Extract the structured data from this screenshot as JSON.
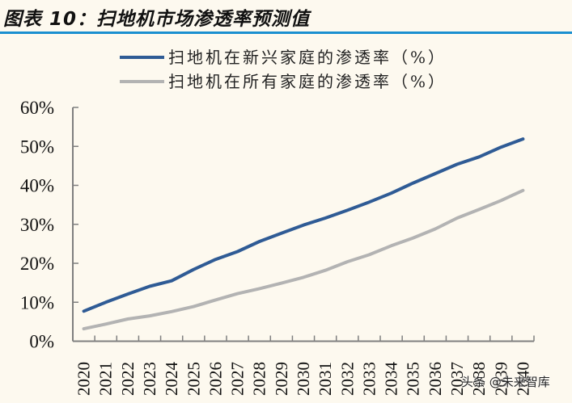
{
  "title": "图表 10：扫地机市场渗透率预测值",
  "watermark": "头条 @未来智库",
  "colors": {
    "background": "#fdf9ef",
    "title_rule": "#1a8fd0",
    "series_emerging": "#2f5b95",
    "series_all": "#b3b3b3",
    "axis": "#7f7f7f"
  },
  "chart_data": {
    "type": "line",
    "title": "扫地机市场渗透率预测值",
    "xlabel": "",
    "ylabel": "",
    "ylim": [
      0,
      60
    ],
    "yticks": [
      "0%",
      "10%",
      "20%",
      "30%",
      "40%",
      "50%",
      "60%"
    ],
    "grid": false,
    "legend_position": "top",
    "categories": [
      "2020",
      "2021",
      "2022",
      "2023",
      "2024",
      "2025",
      "2026",
      "2027",
      "2028",
      "2029",
      "2030",
      "2031",
      "2032",
      "2033",
      "2034",
      "2035",
      "2036",
      "2037",
      "2038",
      "2039",
      "2040"
    ],
    "series": [
      {
        "name": "扫地机在新兴家庭的渗透率（%）",
        "color": "#2f5b95",
        "values": [
          7.7,
          10.0,
          12.1,
          14.1,
          15.5,
          18.4,
          21.0,
          23.0,
          25.6,
          27.7,
          29.8,
          31.6,
          33.6,
          35.7,
          38.0,
          40.6,
          43.0,
          45.4,
          47.3,
          49.8,
          51.9
        ]
      },
      {
        "name": "扫地机在所有家庭的渗透率（%）",
        "color": "#b3b3b3",
        "values": [
          3.2,
          4.4,
          5.7,
          6.5,
          7.6,
          8.9,
          10.6,
          12.2,
          13.5,
          14.9,
          16.4,
          18.2,
          20.4,
          22.2,
          24.5,
          26.5,
          28.8,
          31.6,
          33.8,
          36.1,
          38.7
        ]
      }
    ]
  }
}
